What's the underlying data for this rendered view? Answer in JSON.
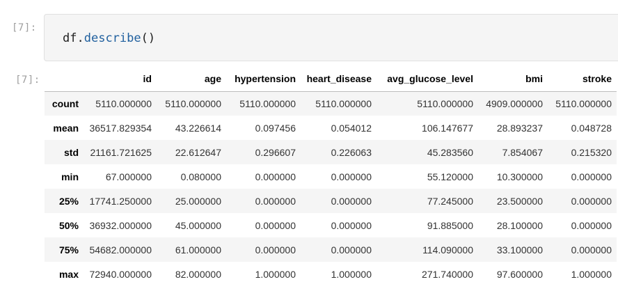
{
  "input_cell": {
    "prompt": "[7]:",
    "code": {
      "object": "df",
      "dot": ".",
      "method": "describe",
      "parens": "()"
    }
  },
  "output_cell": {
    "prompt": "[7]:",
    "table": {
      "columns": [
        "",
        "id",
        "age",
        "hypertension",
        "heart_disease",
        "avg_glucose_level",
        "bmi",
        "stroke"
      ],
      "rows": [
        {
          "label": "count",
          "values": [
            "5110.000000",
            "5110.000000",
            "5110.000000",
            "5110.000000",
            "5110.000000",
            "4909.000000",
            "5110.000000"
          ]
        },
        {
          "label": "mean",
          "values": [
            "36517.829354",
            "43.226614",
            "0.097456",
            "0.054012",
            "106.147677",
            "28.893237",
            "0.048728"
          ]
        },
        {
          "label": "std",
          "values": [
            "21161.721625",
            "22.612647",
            "0.296607",
            "0.226063",
            "45.283560",
            "7.854067",
            "0.215320"
          ]
        },
        {
          "label": "min",
          "values": [
            "67.000000",
            "0.080000",
            "0.000000",
            "0.000000",
            "55.120000",
            "10.300000",
            "0.000000"
          ]
        },
        {
          "label": "25%",
          "values": [
            "17741.250000",
            "25.000000",
            "0.000000",
            "0.000000",
            "77.245000",
            "23.500000",
            "0.000000"
          ]
        },
        {
          "label": "50%",
          "values": [
            "36932.000000",
            "45.000000",
            "0.000000",
            "0.000000",
            "91.885000",
            "28.100000",
            "0.000000"
          ]
        },
        {
          "label": "75%",
          "values": [
            "54682.000000",
            "61.000000",
            "0.000000",
            "0.000000",
            "114.090000",
            "33.100000",
            "0.000000"
          ]
        },
        {
          "label": "max",
          "values": [
            "72940.000000",
            "82.000000",
            "1.000000",
            "1.000000",
            "271.740000",
            "97.600000",
            "1.000000"
          ]
        }
      ]
    }
  },
  "colors": {
    "prompt": "#9e9e9e",
    "code_background": "#f5f5f5",
    "method_color": "#1f5f9e",
    "row_stripe": "#f5f5f5"
  }
}
